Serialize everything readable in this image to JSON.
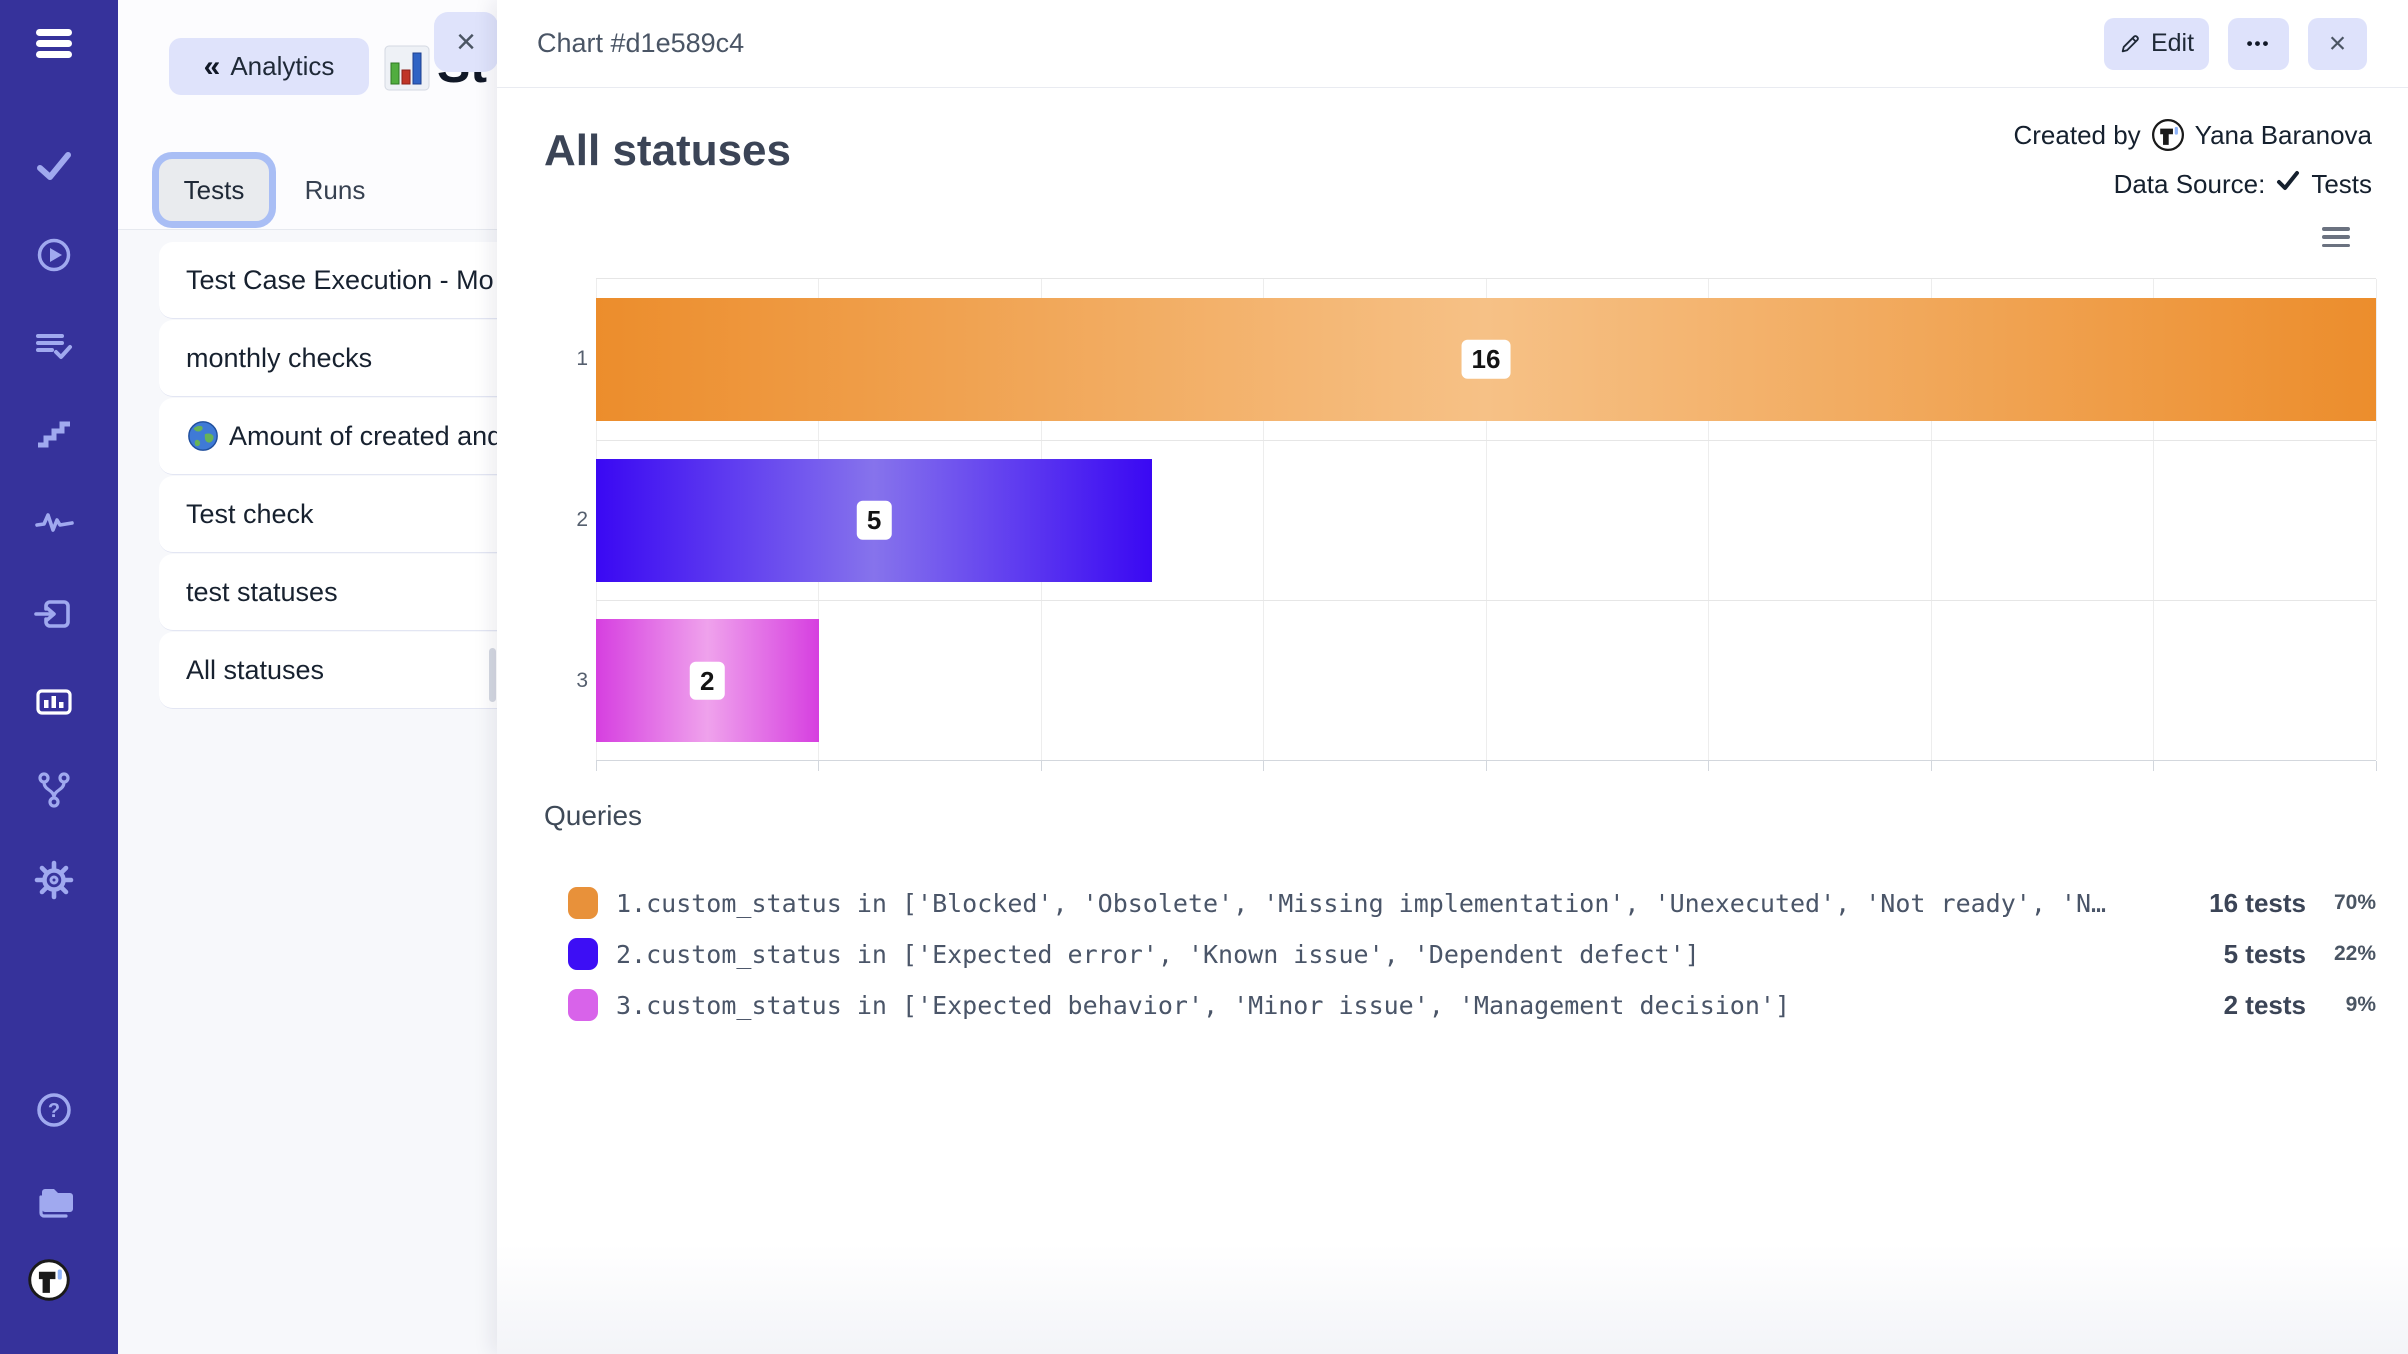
{
  "app": {
    "accent": "#36329b",
    "button_bg": "#dfe3fb",
    "panel_bg": "#f7f8fb"
  },
  "sidebar": {
    "icons": [
      "menu",
      "check",
      "play",
      "list-check",
      "steps",
      "pulse",
      "import",
      "bar-chart",
      "branch",
      "gear",
      "help",
      "folder",
      "logo"
    ],
    "active_icon": "bar-chart"
  },
  "drawer": {
    "back_label": "Analytics",
    "back_chevrons": "«",
    "panel_title_partial": "St",
    "close_glyph": "×",
    "tabs": [
      {
        "label": "Tests",
        "selected": true
      },
      {
        "label": "Runs",
        "selected": false
      }
    ],
    "items": [
      {
        "label": "Test Case Execution - Mo",
        "icon": null
      },
      {
        "label": "monthly checks",
        "icon": null
      },
      {
        "label": "Amount of created and",
        "icon": "globe"
      },
      {
        "label": "Test check",
        "icon": null
      },
      {
        "label": "test statuses",
        "icon": null
      },
      {
        "label": "All statuses",
        "icon": null
      }
    ]
  },
  "modal": {
    "header": {
      "title": "Chart #d1e589c4",
      "edit_label": "Edit",
      "more_glyph": "•••",
      "close_glyph": "×"
    },
    "meta": {
      "created_by_label": "Created by",
      "author": "Yana Baranova",
      "datasource_label": "Data Source:",
      "datasource_value": "Tests"
    },
    "chart_title": "All statuses",
    "queries": {
      "heading": "Queries",
      "rows": [
        {
          "query": "1.custom_status in ['Blocked', 'Obsolete', 'Missing implementation', 'Unexecuted', 'Not ready', 'N…",
          "tests": "16 tests",
          "percent": "70%",
          "color": "#e8913a"
        },
        {
          "query": "2.custom_status in ['Expected error', 'Known issue', 'Dependent defect']",
          "tests": "5 tests",
          "percent": "22%",
          "color": "#3d0ef5"
        },
        {
          "query": "3.custom_status in ['Expected behavior', 'Minor issue', 'Management decision']",
          "tests": "2 tests",
          "percent": "9%",
          "color": "#d863ea"
        }
      ]
    }
  },
  "chart_data": {
    "type": "bar",
    "orientation": "horizontal",
    "title": "All statuses",
    "categories": [
      "1",
      "2",
      "3"
    ],
    "values": [
      16,
      5,
      2
    ],
    "data_labels": [
      "16",
      "5",
      "2"
    ],
    "xlim": [
      0,
      16
    ],
    "x_tick_interval": 2,
    "grid": true,
    "legend": false,
    "bars": [
      {
        "edge_color": "#ec8d2c",
        "mid_color": "#f6c186"
      },
      {
        "edge_color": "#3a08f3",
        "mid_color": "#8673ec"
      },
      {
        "edge_color": "#d63fe0",
        "mid_color": "#efa2ec"
      }
    ]
  }
}
